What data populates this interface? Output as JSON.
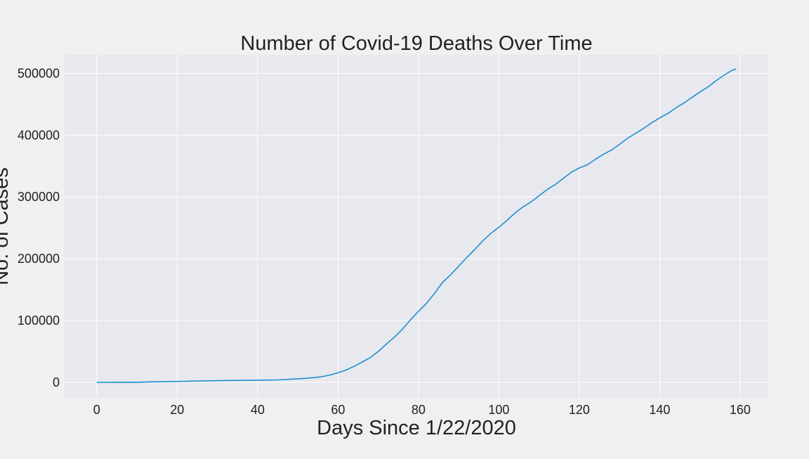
{
  "chart_data": {
    "type": "line",
    "title": "Number of Covid-19 Deaths Over Time",
    "xlabel": "Days Since 1/22/2020",
    "ylabel": "No. of Cases",
    "xlim": [
      -8,
      167
    ],
    "ylim": [
      -25000,
      530000
    ],
    "x_ticks": [
      0,
      20,
      40,
      60,
      80,
      100,
      120,
      140,
      160
    ],
    "y_ticks": [
      0,
      100000,
      200000,
      300000,
      400000,
      500000
    ],
    "grid": true,
    "legend": "none",
    "colors": {
      "line": "#1f8fd0",
      "plot_bg": "#e8e8ef",
      "page_bg": "#f0f0f0",
      "grid": "#ffffff",
      "text": "#222222"
    },
    "series": [
      {
        "x": [
          0,
          5,
          10,
          15,
          20,
          25,
          30,
          35,
          40,
          45,
          50,
          52,
          54,
          56,
          58,
          60,
          62,
          64,
          66,
          68,
          70,
          72,
          74,
          76,
          78,
          80,
          82,
          84,
          86,
          88,
          90,
          92,
          94,
          96,
          98,
          100,
          102,
          104,
          106,
          108,
          110,
          112,
          114,
          116,
          118,
          120,
          122,
          124,
          126,
          128,
          130,
          132,
          134,
          136,
          138,
          140,
          142,
          144,
          146,
          148,
          150,
          152,
          154,
          156,
          158,
          159
        ],
        "y": [
          17,
          130,
          300,
          1000,
          1500,
          2200,
          2800,
          3200,
          3500,
          4000,
          5800,
          6600,
          7800,
          9200,
          12000,
          15500,
          20000,
          26000,
          33000,
          40000,
          50000,
          62000,
          73000,
          86000,
          101000,
          115000,
          128000,
          144000,
          162000,
          174000,
          188000,
          202000,
          215000,
          229000,
          241000,
          251000,
          262000,
          274000,
          284000,
          292000,
          302000,
          312000,
          320000,
          330000,
          340000,
          347000,
          352000,
          361000,
          369000,
          376000,
          385000,
          395000,
          403000,
          411000,
          420000,
          428000,
          435000,
          444000,
          452000,
          461000,
          470000,
          478000,
          488000,
          497000,
          505000,
          507000
        ]
      }
    ]
  }
}
